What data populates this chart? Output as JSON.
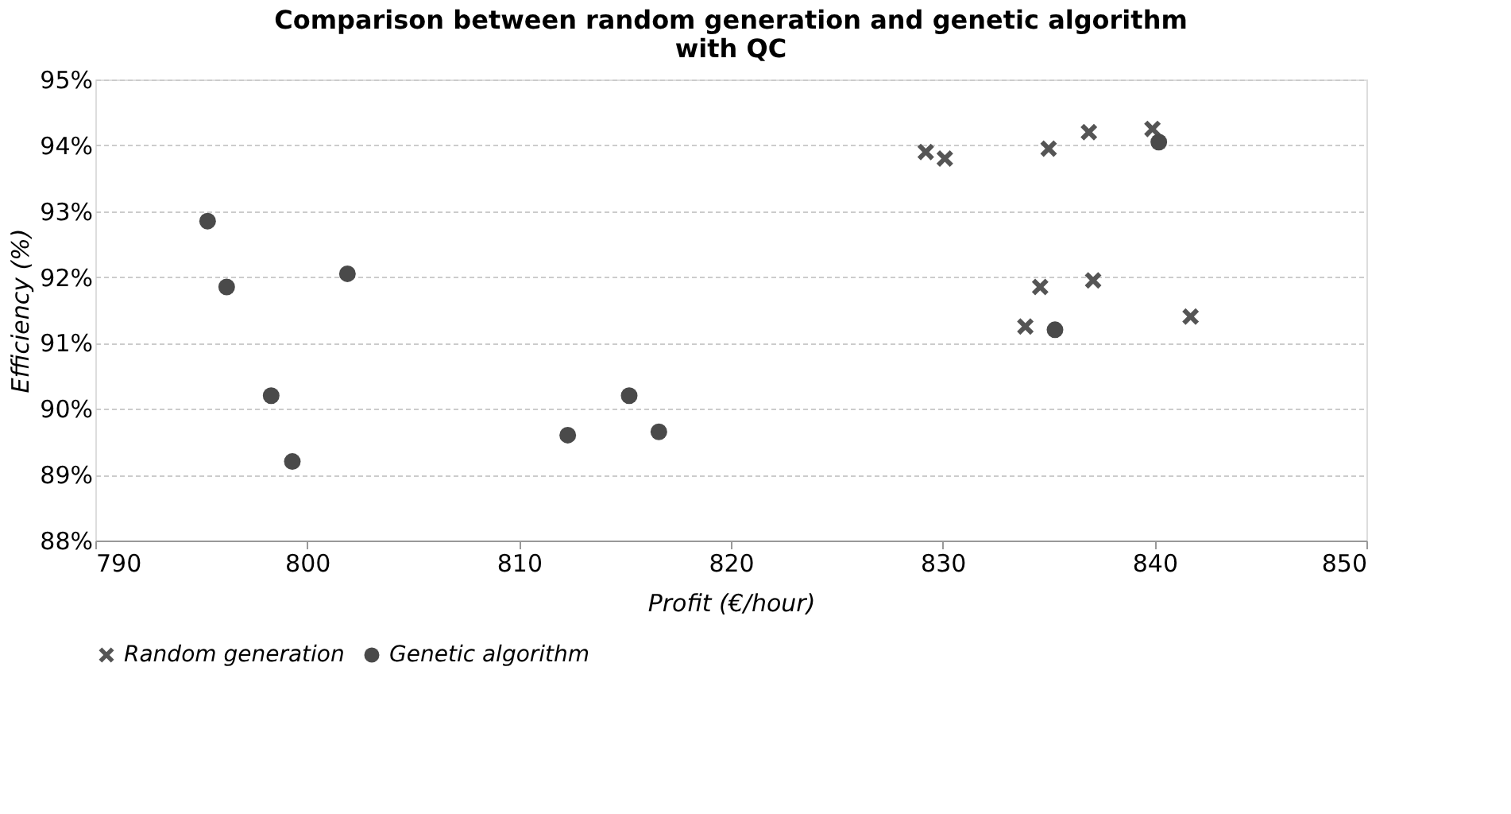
{
  "chart_data": {
    "type": "scatter",
    "title": [
      "Comparison between random generation and genetic algorithm",
      "with QC"
    ],
    "xlabel": "Profit (€/hour)",
    "ylabel": "Efficiency (%)",
    "xlim": [
      790,
      850
    ],
    "xticks": [
      790,
      800,
      810,
      820,
      830,
      840,
      850
    ],
    "ylim": [
      88,
      95
    ],
    "yticks": [
      {
        "value": 88,
        "label": "88%"
      },
      {
        "value": 89,
        "label": "89%"
      },
      {
        "value": 90,
        "label": "90%"
      },
      {
        "value": 91,
        "label": "91%"
      },
      {
        "value": 92,
        "label": "92%"
      },
      {
        "value": 93,
        "label": "93%"
      },
      {
        "value": 94,
        "label": "94%"
      },
      {
        "value": 95,
        "label": "95%"
      }
    ],
    "grid": "y",
    "legend": "bottom",
    "series": [
      {
        "name": "Random generation",
        "color": "#555555",
        "marker": "cross",
        "x": [
          829.2,
          830.1,
          835.0,
          836.9,
          839.9,
          834.6,
          837.1,
          833.9,
          841.7
        ],
        "values": [
          93.9,
          93.8,
          93.95,
          94.2,
          94.25,
          91.85,
          91.95,
          91.25,
          91.4
        ]
      },
      {
        "name": "Genetic algorithm",
        "color": "#4a4a4a",
        "marker": "circle",
        "x": [
          795.3,
          796.2,
          801.9,
          798.3,
          799.3,
          812.3,
          815.2,
          816.6,
          835.3,
          840.2
        ],
        "values": [
          92.85,
          91.85,
          92.05,
          90.2,
          89.2,
          89.6,
          90.2,
          89.65,
          91.2,
          94.05
        ]
      }
    ]
  }
}
